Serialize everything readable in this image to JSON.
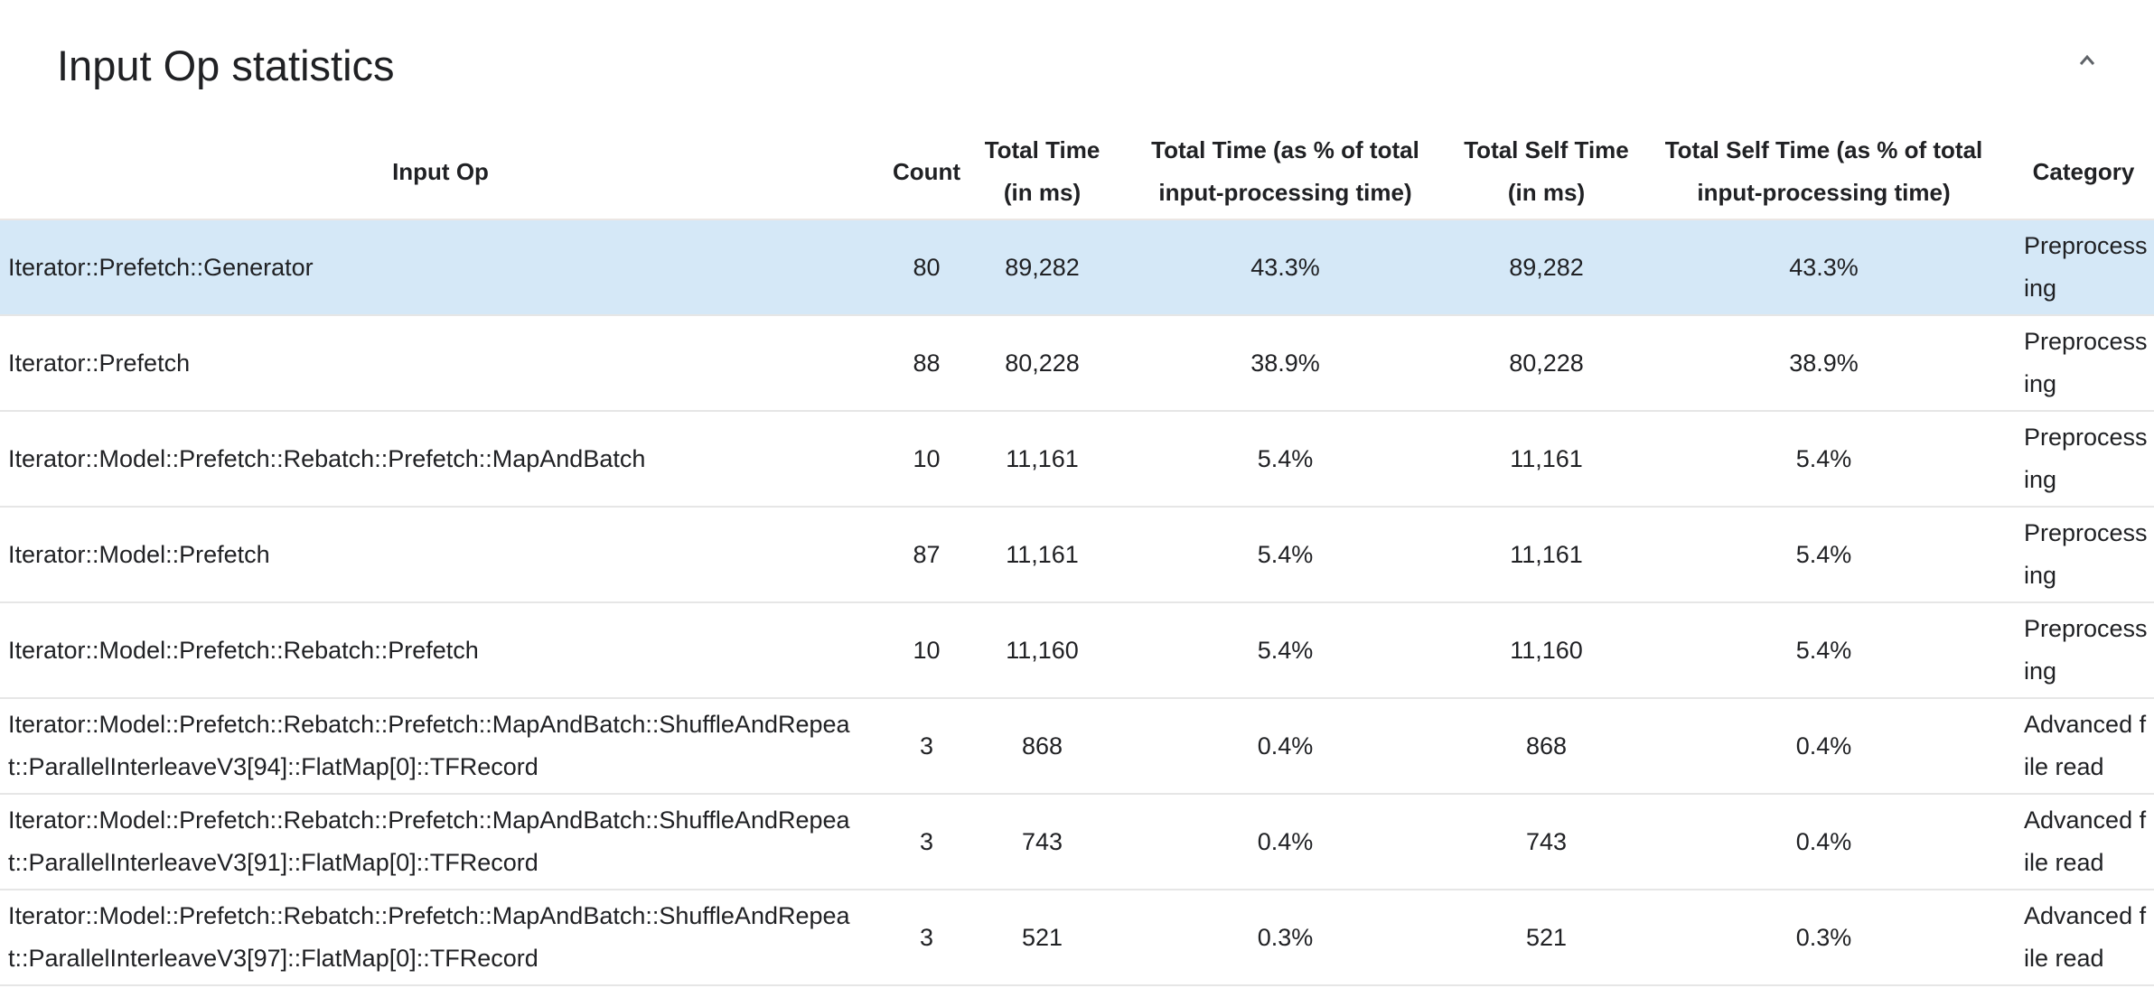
{
  "title": "Input Op statistics",
  "collapse_icon": "chevron-up-icon",
  "highlight_color": "#d5e8f7",
  "columns": [
    "Input Op",
    "Count",
    "Total Time (in ms)",
    "Total Time (as % of total input-processing time)",
    "Total Self Time (in ms)",
    "Total Self Time (as % of total input-processing time)",
    "Category"
  ],
  "rows": [
    {
      "op": "Iterator::Prefetch::Generator",
      "count": "80",
      "total_time": "89,282",
      "total_pct": "43.3%",
      "self_time": "89,282",
      "self_pct": "43.3%",
      "category": "Preprocessing",
      "selected": true
    },
    {
      "op": "Iterator::Prefetch",
      "count": "88",
      "total_time": "80,228",
      "total_pct": "38.9%",
      "self_time": "80,228",
      "self_pct": "38.9%",
      "category": "Preprocessing"
    },
    {
      "op": "Iterator::Model::Prefetch::Rebatch::Prefetch::MapAndBatch",
      "count": "10",
      "total_time": "11,161",
      "total_pct": "5.4%",
      "self_time": "11,161",
      "self_pct": "5.4%",
      "category": "Preprocessing"
    },
    {
      "op": "Iterator::Model::Prefetch",
      "count": "87",
      "total_time": "11,161",
      "total_pct": "5.4%",
      "self_time": "11,161",
      "self_pct": "5.4%",
      "category": "Preprocessing"
    },
    {
      "op": "Iterator::Model::Prefetch::Rebatch::Prefetch",
      "count": "10",
      "total_time": "11,160",
      "total_pct": "5.4%",
      "self_time": "11,160",
      "self_pct": "5.4%",
      "category": "Preprocessing"
    },
    {
      "op": "Iterator::Model::Prefetch::Rebatch::Prefetch::MapAndBatch::ShuffleAndRepeat::ParallelInterleaveV3[94]::FlatMap[0]::TFRecord",
      "count": "3",
      "total_time": "868",
      "total_pct": "0.4%",
      "self_time": "868",
      "self_pct": "0.4%",
      "category": "Advanced file read"
    },
    {
      "op": "Iterator::Model::Prefetch::Rebatch::Prefetch::MapAndBatch::ShuffleAndRepeat::ParallelInterleaveV3[91]::FlatMap[0]::TFRecord",
      "count": "3",
      "total_time": "743",
      "total_pct": "0.4%",
      "self_time": "743",
      "self_pct": "0.4%",
      "category": "Advanced file read"
    },
    {
      "op": "Iterator::Model::Prefetch::Rebatch::Prefetch::MapAndBatch::ShuffleAndRepeat::ParallelInterleaveV3[97]::FlatMap[0]::TFRecord",
      "count": "3",
      "total_time": "521",
      "total_pct": "0.3%",
      "self_time": "521",
      "self_pct": "0.3%",
      "category": "Advanced file read"
    }
  ]
}
